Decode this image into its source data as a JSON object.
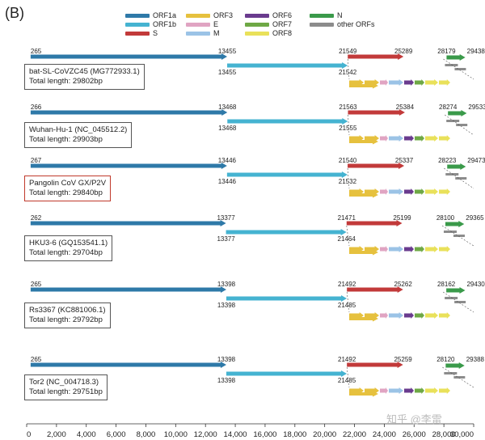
{
  "panel_label": "(B)",
  "legend": [
    {
      "label": "ORF1a",
      "color": "#2e79a8"
    },
    {
      "label": "ORF1b",
      "color": "#45b3d1"
    },
    {
      "label": "S",
      "color": "#c23a3a"
    },
    {
      "label": "ORF3",
      "color": "#e6c13e"
    },
    {
      "label": "E",
      "color": "#e0a4c2"
    },
    {
      "label": "M",
      "color": "#9bc3e6"
    },
    {
      "label": "ORF6",
      "color": "#6a3b8e"
    },
    {
      "label": "ORF7",
      "color": "#6ea845"
    },
    {
      "label": "ORF8",
      "color": "#e9e15a"
    },
    {
      "label": "N",
      "color": "#3a9a4a"
    },
    {
      "label": "other ORFs",
      "color": "#8c8c8c"
    }
  ],
  "genomes": [
    {
      "name": "bat-SL-CoVZC45 (MG772933.1)",
      "length": "Total length: 29802bp",
      "highlight": false,
      "orf1a_start": "265",
      "orf1a_end": "13455",
      "orf1b_start": "13455",
      "orf1b_end": "21542",
      "s_start": "21549",
      "s_end": "25289",
      "n_start": "28179",
      "n_end": "29438",
      "orf1a": [
        265,
        13455
      ],
      "orf1b": [
        13455,
        21542
      ],
      "s": [
        21549,
        25289
      ],
      "n": [
        28179,
        29438
      ]
    },
    {
      "name": "Wuhan-Hu-1 (NC_045512.2)",
      "length": "Total length: 29903bp",
      "highlight": false,
      "orf1a_start": "266",
      "orf1a_end": "13468",
      "orf1b_start": "13468",
      "orf1b_end": "21555",
      "s_start": "21563",
      "s_end": "25384",
      "n_start": "28274",
      "n_end": "29533",
      "orf1a": [
        266,
        13468
      ],
      "orf1b": [
        13468,
        21555
      ],
      "s": [
        21563,
        25384
      ],
      "n": [
        28274,
        29533
      ]
    },
    {
      "name": "Pangolin CoV GX/P2V",
      "length": "Total length: 29840bp",
      "highlight": true,
      "orf1a_start": "267",
      "orf1a_end": "13446",
      "orf1b_start": "13446",
      "orf1b_end": "21532",
      "s_start": "21540",
      "s_end": "25337",
      "n_start": "28223",
      "n_end": "29473",
      "orf1a": [
        267,
        13446
      ],
      "orf1b": [
        13446,
        21532
      ],
      "s": [
        21540,
        25337
      ],
      "n": [
        28223,
        29473
      ]
    },
    {
      "name": "HKU3-6 (GQ153541.1)",
      "length": "Total length: 29704bp",
      "highlight": false,
      "orf1a_start": "262",
      "orf1a_end": "13377",
      "orf1b_start": "13377",
      "orf1b_end": "21464",
      "s_start": "21471",
      "s_end": "25199",
      "n_start": "28100",
      "n_end": "29365",
      "orf1a": [
        262,
        13377
      ],
      "orf1b": [
        13377,
        21464
      ],
      "s": [
        21471,
        25199
      ],
      "n": [
        28100,
        29365
      ]
    },
    {
      "name": "Rs3367 (KC881006.1)",
      "length": "Total length: 29792bp",
      "highlight": false,
      "orf1a_start": "265",
      "orf1a_end": "13398",
      "orf1b_start": "13398",
      "orf1b_end": "21485",
      "s_start": "21492",
      "s_end": "25262",
      "n_start": "28162",
      "n_end": "29430",
      "orf1a": [
        265,
        13398
      ],
      "orf1b": [
        13398,
        21485
      ],
      "s": [
        21492,
        25262
      ],
      "n": [
        28162,
        29430
      ]
    },
    {
      "name": "Tor2 (NC_004718.3)",
      "length": "Total length: 29751bp",
      "highlight": false,
      "orf1a_start": "265",
      "orf1a_end": "13398",
      "orf1b_start": "13398",
      "orf1b_end": "21485",
      "s_start": "21492",
      "s_end": "25259",
      "n_start": "28120",
      "n_end": "29388",
      "orf1a": [
        265,
        13398
      ],
      "orf1b": [
        13398,
        21485
      ],
      "s": [
        21492,
        25259
      ],
      "n": [
        28120,
        29388
      ]
    }
  ],
  "axis_ticks": [
    "0",
    "2,000",
    "4,000",
    "6,000",
    "8,000",
    "10,000",
    "12,000",
    "14,000",
    "16,000",
    "18,000",
    "20,000",
    "22,000",
    "24,000",
    "26,000",
    "28,000",
    "30,000"
  ],
  "axis_values": [
    0,
    2000,
    4000,
    6000,
    8000,
    10000,
    12000,
    14000,
    16000,
    18000,
    20000,
    22000,
    24000,
    26000,
    28000,
    30000
  ],
  "watermark": "知乎 @李雷"
}
